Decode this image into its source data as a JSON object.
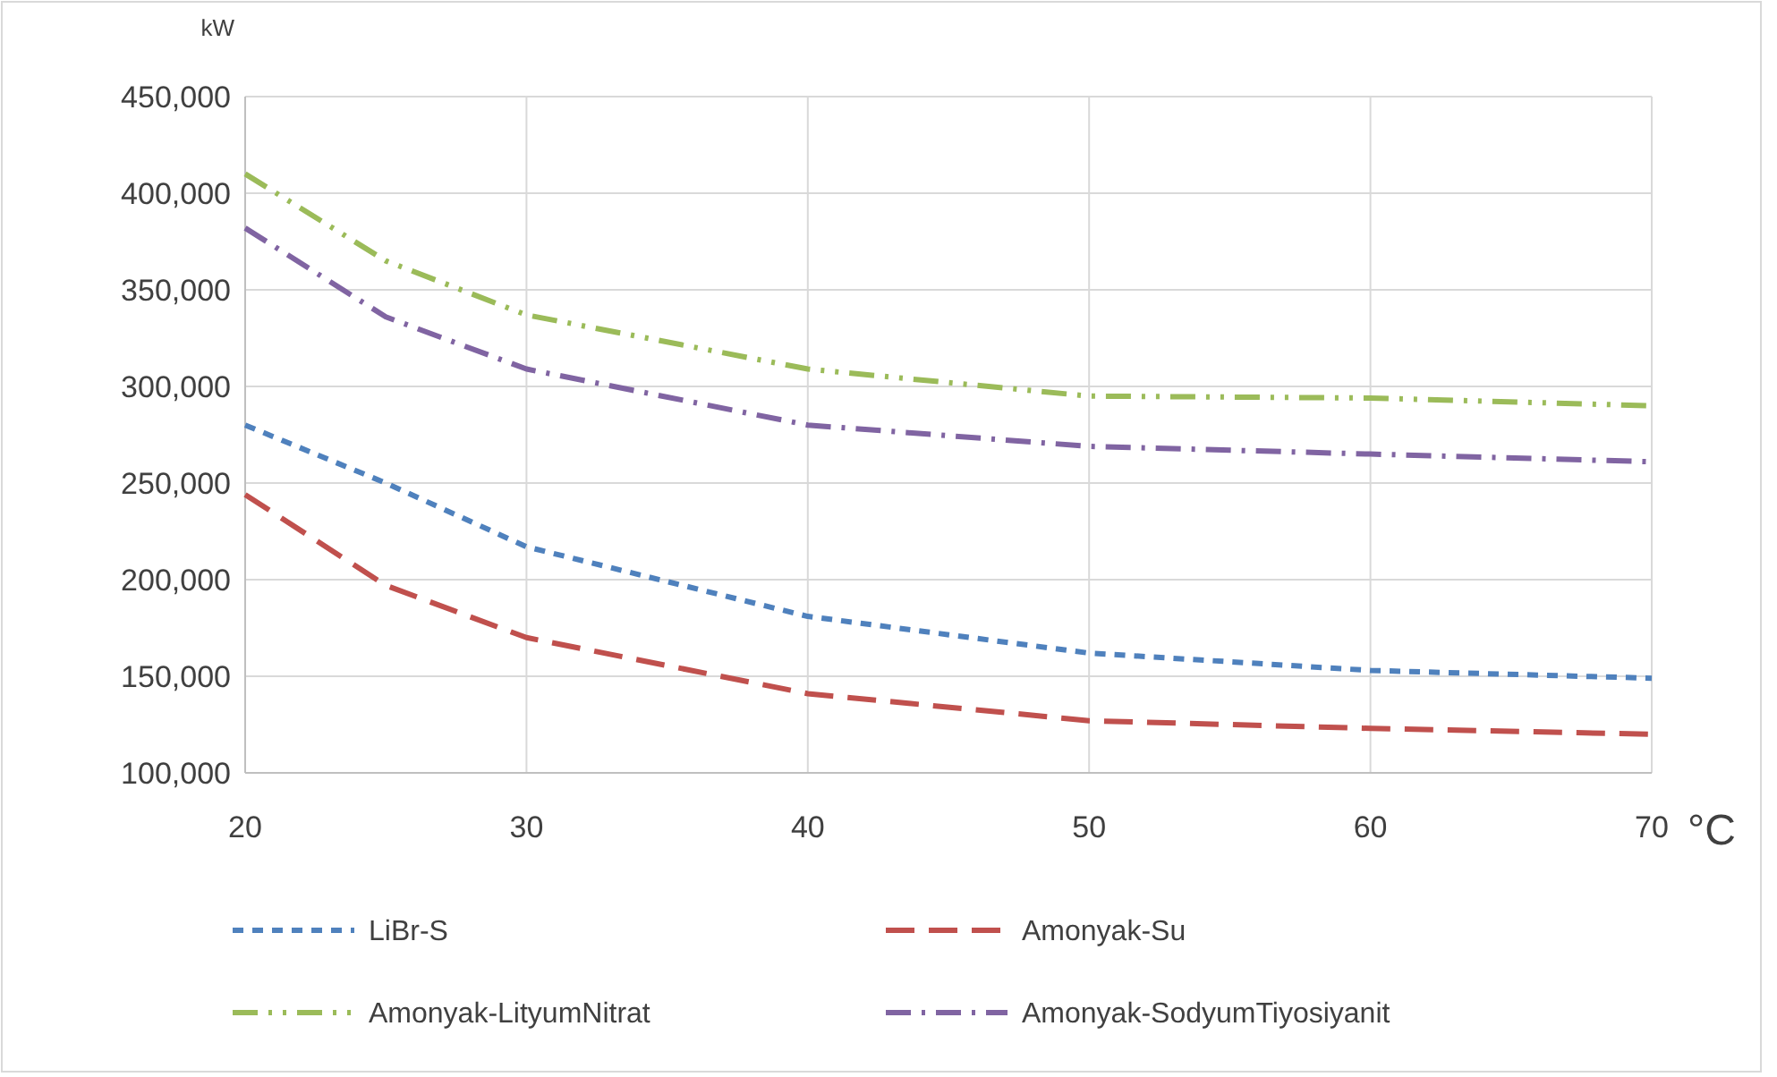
{
  "chart_data": {
    "type": "line",
    "xlabel": "°C",
    "ylabel": "kW",
    "x": [
      20,
      25,
      30,
      40,
      50,
      60,
      70
    ],
    "series": [
      {
        "name": "LiBr-S",
        "color": "#4f81bd",
        "line_style": "dashed",
        "values": [
          280000,
          250000,
          217000,
          181000,
          162000,
          153000,
          149000
        ]
      },
      {
        "name": "Amonyak-Su",
        "color": "#c0504d",
        "line_style": "dashed",
        "values": [
          244000,
          197000,
          170000,
          141000,
          127000,
          123000,
          120000
        ]
      },
      {
        "name": "Amonyak-LityumNitrat",
        "color": "#9bbb59",
        "line_style": "dashed",
        "values": [
          410000,
          365000,
          337000,
          309000,
          295000,
          294000,
          290000
        ]
      },
      {
        "name": "Amonyak-SodyumTiyosiyanit",
        "color": "#8064a2",
        "line_style": "dashed",
        "values": [
          382000,
          336000,
          309000,
          280000,
          269000,
          265000,
          261000
        ]
      }
    ],
    "xlim": [
      20,
      70
    ],
    "xticks": [
      20,
      30,
      40,
      50,
      60,
      70
    ],
    "ylim": [
      100000,
      450000
    ],
    "yticks": [
      {
        "value": 100000,
        "label": "100,000"
      },
      {
        "value": 150000,
        "label": "150,000"
      },
      {
        "value": 200000,
        "label": "200,000"
      },
      {
        "value": 250000,
        "label": "250,000"
      },
      {
        "value": 300000,
        "label": "300,000"
      },
      {
        "value": 350000,
        "label": "350,000"
      },
      {
        "value": 400000,
        "label": "400,000"
      },
      {
        "value": 450000,
        "label": "450,000"
      }
    ],
    "grid": true,
    "legend": "bottom"
  }
}
